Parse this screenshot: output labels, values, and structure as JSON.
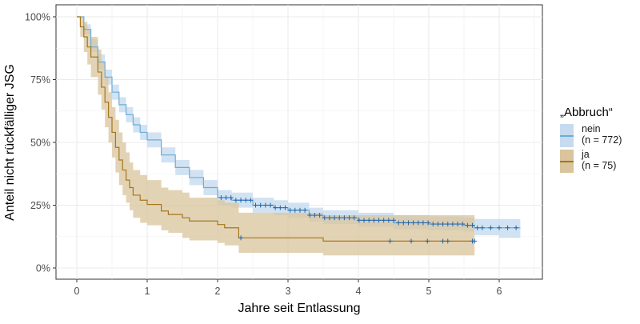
{
  "chart_data": {
    "type": "line",
    "subtype": "kaplan-meier",
    "title": "",
    "xlabel": "Jahre seit Entlassung",
    "ylabel": "Anteil nicht rückfälliger JSG",
    "xlim": [
      -0.25,
      6.6
    ],
    "ylim": [
      -0.05,
      1.05
    ],
    "x_ticks": [
      "0",
      "1",
      "2",
      "3",
      "4",
      "5",
      "6"
    ],
    "y_ticks": [
      "0%",
      "25%",
      "50%",
      "75%",
      "100%"
    ],
    "grid": true,
    "legend": {
      "title": "„Abbruch“",
      "position": "right",
      "entries": [
        {
          "label_line1": "nein",
          "label_line2": "(n = 772)",
          "color": "#6baed6",
          "fill": "#c6dbef"
        },
        {
          "label_line1": "ja",
          "label_line2": "(n = 75)",
          "color": "#a6761d",
          "fill": "#d9c49c"
        }
      ]
    },
    "series": [
      {
        "name": "nein (n = 772)",
        "color": "#6baed6",
        "fill": "#c6dbef",
        "x": [
          0,
          0.1,
          0.2,
          0.3,
          0.4,
          0.5,
          0.6,
          0.7,
          0.8,
          0.9,
          1.0,
          1.2,
          1.4,
          1.6,
          1.8,
          2.0,
          2.2,
          2.5,
          2.8,
          3.0,
          3.3,
          3.5,
          4.0,
          4.5,
          5.0,
          5.5,
          5.65,
          6.0,
          6.3
        ],
        "y": [
          1.0,
          0.95,
          0.88,
          0.82,
          0.76,
          0.7,
          0.65,
          0.61,
          0.57,
          0.54,
          0.51,
          0.45,
          0.4,
          0.36,
          0.32,
          0.28,
          0.27,
          0.25,
          0.24,
          0.23,
          0.21,
          0.2,
          0.19,
          0.18,
          0.175,
          0.17,
          0.16,
          0.16,
          0.16
        ],
        "lower": [
          1.0,
          0.93,
          0.86,
          0.79,
          0.73,
          0.67,
          0.62,
          0.58,
          0.54,
          0.51,
          0.48,
          0.42,
          0.37,
          0.33,
          0.29,
          0.25,
          0.24,
          0.22,
          0.21,
          0.2,
          0.185,
          0.175,
          0.165,
          0.155,
          0.15,
          0.145,
          0.13,
          0.12,
          0.12
        ],
        "upper": [
          1.0,
          0.97,
          0.91,
          0.85,
          0.79,
          0.73,
          0.68,
          0.64,
          0.6,
          0.57,
          0.54,
          0.48,
          0.43,
          0.39,
          0.35,
          0.31,
          0.3,
          0.28,
          0.27,
          0.26,
          0.24,
          0.23,
          0.22,
          0.21,
          0.205,
          0.2,
          0.195,
          0.195,
          0.195
        ]
      },
      {
        "name": "ja (n = 75)",
        "color": "#a6761d",
        "fill": "#d9c49c",
        "x": [
          0,
          0.05,
          0.1,
          0.15,
          0.2,
          0.3,
          0.35,
          0.4,
          0.45,
          0.5,
          0.55,
          0.6,
          0.65,
          0.7,
          0.75,
          0.8,
          0.9,
          1.0,
          1.2,
          1.3,
          1.5,
          1.6,
          2.0,
          2.1,
          2.3,
          3.5,
          5.65
        ],
        "y": [
          1.0,
          0.96,
          0.92,
          0.88,
          0.84,
          0.78,
          0.72,
          0.66,
          0.6,
          0.54,
          0.48,
          0.43,
          0.39,
          0.35,
          0.32,
          0.29,
          0.27,
          0.253,
          0.227,
          0.213,
          0.2,
          0.187,
          0.173,
          0.16,
          0.12,
          0.107,
          0.107
        ],
        "lower": [
          1.0,
          0.92,
          0.86,
          0.81,
          0.76,
          0.69,
          0.63,
          0.56,
          0.5,
          0.44,
          0.38,
          0.33,
          0.29,
          0.26,
          0.23,
          0.2,
          0.18,
          0.17,
          0.15,
          0.14,
          0.12,
          0.11,
          0.1,
          0.09,
          0.06,
          0.05,
          0.05
        ],
        "upper": [
          1.0,
          1.0,
          0.98,
          0.95,
          0.92,
          0.87,
          0.82,
          0.76,
          0.7,
          0.64,
          0.59,
          0.54,
          0.5,
          0.46,
          0.42,
          0.39,
          0.37,
          0.35,
          0.32,
          0.31,
          0.3,
          0.28,
          0.27,
          0.26,
          0.22,
          0.21,
          0.21
        ]
      }
    ]
  }
}
